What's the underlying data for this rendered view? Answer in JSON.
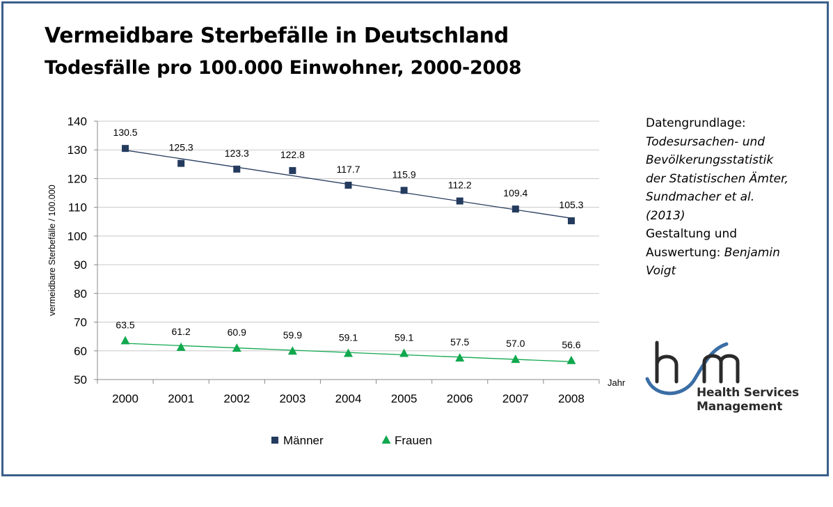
{
  "title": "Vermeidbare Sterbefälle in Deutschland",
  "subtitle": "Todesfälle pro 100.000 Einwohner, 2000-2008",
  "source": {
    "line1": "Datengrundlage:",
    "line2": "Todesursachen- und",
    "line3": "Bevölkerungsstatistik",
    "line4": "der Statistischen Ämter,",
    "line5": "Sundmacher et al.",
    "line6": "(2013)",
    "line7": "Gestaltung und",
    "line8a": "Auswertung: ",
    "line8b": "Benjamin",
    "line9": "Voigt"
  },
  "logo": {
    "line1": "Health Services",
    "line2": "Management",
    "primary_color": "#2a2a2a",
    "accent_color": "#3a6ea5"
  },
  "colors": {
    "frame": "#3a5f8a",
    "men": "#243b5e",
    "women": "#11a84e",
    "grid": "#c8c8c8"
  },
  "chart_data": {
    "type": "line",
    "categories": [
      "2000",
      "2001",
      "2002",
      "2003",
      "2004",
      "2005",
      "2006",
      "2007",
      "2008"
    ],
    "series": [
      {
        "name": "Männer",
        "marker": "square",
        "color": "#243b5e",
        "values": [
          130.5,
          125.3,
          123.3,
          122.8,
          117.7,
          115.9,
          112.2,
          109.4,
          105.3
        ],
        "labels": [
          "130.5",
          "125.3",
          "123.3",
          "122.8",
          "117.7",
          "115.9",
          "112.2",
          "109.4",
          "105.3"
        ],
        "trendline": "linear"
      },
      {
        "name": "Frauen",
        "marker": "triangle",
        "color": "#11a84e",
        "values": [
          63.5,
          61.2,
          60.9,
          59.9,
          59.1,
          59.1,
          57.5,
          57.0,
          56.6
        ],
        "labels": [
          "63.5",
          "61.2",
          "60.9",
          "59.9",
          "59.1",
          "59.1",
          "57.5",
          "57.0",
          "56.6"
        ],
        "trendline": "linear"
      }
    ],
    "ylim": [
      50,
      140
    ],
    "yticks": [
      "50",
      "60",
      "70",
      "80",
      "90",
      "100",
      "110",
      "120",
      "130",
      "140"
    ],
    "ylabel": "vermeidbare Sterbefälle / 100.000",
    "xlabel": "Jahr",
    "grid": true,
    "legend": "bottom"
  }
}
